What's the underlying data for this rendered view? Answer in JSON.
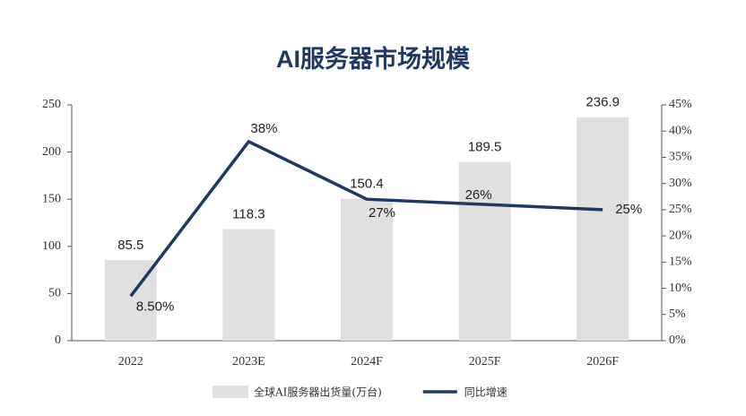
{
  "chart_data": {
    "type": "combo",
    "title": "AI服务器市场规模",
    "categories": [
      "2022",
      "2023E",
      "2024F",
      "2025F",
      "2026F"
    ],
    "series": [
      {
        "name": "全球AI服务器出货量(万台)",
        "type": "bar",
        "color": "#e0e0e0",
        "values": [
          85.5,
          118.3,
          150.4,
          189.5,
          236.9
        ]
      },
      {
        "name": "同比增速",
        "type": "line",
        "axis": "y2",
        "color": "#1f3864",
        "values": [
          8.5,
          38,
          27,
          26,
          25
        ],
        "value_labels": [
          "8.50%",
          "38%",
          "27%",
          "26%",
          "25%"
        ]
      }
    ],
    "ylim": [
      0,
      250
    ],
    "yticks": [
      0,
      50,
      100,
      150,
      200,
      250
    ],
    "y2lim": [
      0,
      45
    ],
    "y2ticks": [
      {
        "value": 0,
        "label": "0%"
      },
      {
        "value": 5,
        "label": "5%"
      },
      {
        "value": 10,
        "label": "10%"
      },
      {
        "value": 15,
        "label": "15%"
      },
      {
        "value": 20,
        "label": "20%"
      },
      {
        "value": 25,
        "label": "25%"
      },
      {
        "value": 30,
        "label": "30%"
      },
      {
        "value": 35,
        "label": "35%"
      },
      {
        "value": 40,
        "label": "40%"
      },
      {
        "value": 45,
        "label": "45%"
      }
    ],
    "grid": false,
    "legend": "bottom"
  }
}
